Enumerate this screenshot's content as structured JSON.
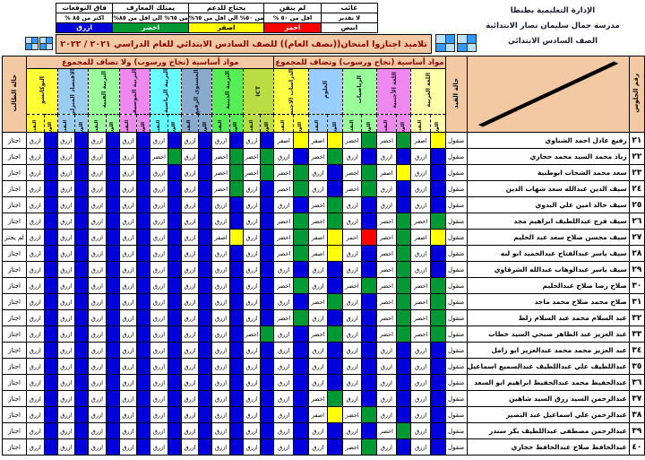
{
  "admin": {
    "line1": "الإدارة التعليمية بطنطا",
    "line2": "مدرسة جمال سليمان نصار الابتدائية",
    "line3": "الصف السادس الابتدائي"
  },
  "title": "تلاميذ اجتازوا امتحان((نصف العام)) للصف السادس الابتدائي للعام الدراسي ٢٠٢١ / ٢٠٢٢",
  "legend": {
    "columns": [
      {
        "label": "فاق التوقعات",
        "range": "اكثر من ٨٥ %",
        "color_name": "ازرق",
        "color": "#0000dd",
        "text_color": "#ffffff"
      },
      {
        "label": "يمتلك المعارف",
        "range": "من ٦٥% الى اقل من ٨٥%",
        "color_name": "اخضر",
        "color": "#009933",
        "text_color": "#ffffff"
      },
      {
        "label": "يحتاج للدعم",
        "range": "من ٥٠% الى اقل من ٦٥%",
        "color_name": "اصفر",
        "color": "#ffff00",
        "text_color": "#000000"
      },
      {
        "label": "لم يتقن",
        "range": "اقل من ٥٠ %",
        "color_name": "احمر",
        "color": "#ff0000",
        "text_color": "#ffffff"
      },
      {
        "label": "غائب",
        "range": "لا تقدير",
        "color_name": "ابيض",
        "color": "#ffffff",
        "text_color": "#000000"
      }
    ]
  },
  "icons": {
    "mini_table_icon": "mini-table-icon",
    "cells": [
      "#3399ff",
      "#bde0ff",
      "#bde0ff",
      "#3399ff"
    ]
  },
  "table": {
    "corner_headers": {
      "seat": "رقم الجلوس",
      "enroll": "حالة القيد",
      "student_status": "حالة الطالب"
    },
    "groups": [
      {
        "label": "مواد أساسية (نجاح ورسوب) وتضاف للمجموع",
        "subjects": 5
      },
      {
        "label": "مواد أساسية (نجاح ورسوب) ولا تضاف للمجموع",
        "subjects": 8
      }
    ],
    "sub_headers": {
      "color": "اللون",
      "grade": "التقدير"
    },
    "subjects": [
      {
        "name": "اللغة العربية",
        "color": "#ffffaa"
      },
      {
        "name": "اللغة الأجنبية",
        "color": "#ee88ee"
      },
      {
        "name": "الرياضيات",
        "color": "#99ff99"
      },
      {
        "name": "العلوم",
        "color": "#99ccff"
      },
      {
        "name": "الدراسات الاجتماعية",
        "color": "#ffff44"
      },
      {
        "name": "ICT",
        "color": "#bbdd44"
      },
      {
        "name": "التربية الدينية",
        "color": "#55ee55"
      },
      {
        "name": "المستوى الرفيع",
        "color": "#88aacc"
      },
      {
        "name": "التربية الرياضية",
        "color": "#66ffff"
      },
      {
        "name": "التربية الموسيقية",
        "color": "#ee88ee"
      },
      {
        "name": "التربية الفنية",
        "color": "#99ff99"
      },
      {
        "name": "الاقتصاد المنزلي",
        "color": "#99ccee"
      },
      {
        "name": "التوكاتسو",
        "color": "#ffff33"
      }
    ],
    "grade_colors": {
      "ازرق": "#0000dd",
      "اخضر": "#009933",
      "اصفر": "#ffff00",
      "احمر": "#ff0000"
    },
    "rows": [
      {
        "seat": "٢١",
        "name": "رفيع عادل احمد الشناوي",
        "enroll": "منقول",
        "status": "اجتاز",
        "grades": [
          "اصفر",
          "اخضر",
          "اخضر",
          "اصفر",
          "اصفر",
          "ازرق",
          "ازرق",
          "ازرق",
          "ازرق",
          "ازرق",
          "ازرق",
          "ازرق",
          "ازرق"
        ]
      },
      {
        "seat": "٢٢",
        "name": "زياد محمد السيد محمد حجازي",
        "enroll": "منقول",
        "status": "اجتاز",
        "grades": [
          "ازرق",
          "ازرق",
          "ازرق",
          "اخضر",
          "ازرق",
          "اخضر",
          "اخضر",
          "ازرق",
          "اخضر",
          "ازرق",
          "ازرق",
          "ازرق",
          "ازرق"
        ]
      },
      {
        "seat": "٢٣",
        "name": "سعد محمد الشحات ابوطبية",
        "enroll": "منقول",
        "status": "اجتاز",
        "grades": [
          "ازرق",
          "اصفر",
          "اخضر",
          "ازرق",
          "اخضر",
          "اخضر",
          "اخضر",
          "ازرق",
          "ازرق",
          "ازرق",
          "ازرق",
          "ازرق",
          "ازرق"
        ]
      },
      {
        "seat": "٢٤",
        "name": "سيف الدين عبدالله سعد شهاب الدين",
        "enroll": "منقول",
        "status": "اجتاز",
        "grades": [
          "ازرق",
          "ازرق",
          "اخضر",
          "ازرق",
          "اخضر",
          "ازرق",
          "اخضر",
          "ازرق",
          "ازرق",
          "ازرق",
          "ازرق",
          "ازرق",
          "ازرق"
        ]
      },
      {
        "seat": "٢٥",
        "name": "سيف خالد امين علي البدوي",
        "enroll": "منقول",
        "status": "اجتاز",
        "grades": [
          "ازرق",
          "ازرق",
          "ازرق",
          "اخضر",
          "ازرق",
          "ازرق",
          "ازرق",
          "ازرق",
          "ازرق",
          "ازرق",
          "ازرق",
          "ازرق",
          "ازرق"
        ]
      },
      {
        "seat": "٢٦",
        "name": "سيف فرج عبداللطيف ابراهيم مجد",
        "enroll": "منقول",
        "status": "اجتاز",
        "grades": [
          "اخضر",
          "اخضر",
          "ازرق",
          "اخضر",
          "اخضر",
          "ازرق",
          "ازرق",
          "ازرق",
          "ازرق",
          "ازرق",
          "ازرق",
          "ازرق",
          "ازرق"
        ]
      },
      {
        "seat": "٢٧",
        "name": "سيف محسن صلاح سعد عبد الحليم",
        "enroll": "منقول",
        "status": "لم يجتز",
        "grades": [
          "اصفر",
          "اخضر",
          "احمر",
          "اصفر",
          "اخضر",
          "ازرق",
          "اصفر",
          "ازرق",
          "ازرق",
          "ازرق",
          "ازرق",
          "ازرق",
          "ازرق"
        ]
      },
      {
        "seat": "٢٨",
        "name": "سيف ياسر عبدالفتاح عبدالحميد ابو لبه",
        "enroll": "منقول",
        "status": "اجتاز",
        "grades": [
          "ازرق",
          "اخضر",
          "ازرق",
          "اصفر",
          "اخضر",
          "ازرق",
          "ازرق",
          "ازرق",
          "ازرق",
          "ازرق",
          "ازرق",
          "ازرق",
          "ازرق"
        ]
      },
      {
        "seat": "٢٩",
        "name": "سيف ياسر عبدالوهاب عبدالله الشرقاوي",
        "enroll": "منقول",
        "status": "اجتاز",
        "grades": [
          "ازرق",
          "اخضر",
          "ازرق",
          "ازرق",
          "ازرق",
          "ازرق",
          "ازرق",
          "ازرق",
          "ازرق",
          "ازرق",
          "ازرق",
          "ازرق",
          "ازرق"
        ]
      },
      {
        "seat": "٣٠",
        "name": "صلاح رضا صلاح عبدالحليم",
        "enroll": "منقول",
        "status": "اجتاز",
        "grades": [
          "اخضر",
          "اخضر",
          "اخضر",
          "ازرق",
          "اخضر",
          "ازرق",
          "ازرق",
          "ازرق",
          "ازرق",
          "ازرق",
          "ازرق",
          "ازرق",
          "ازرق"
        ]
      },
      {
        "seat": "٣١",
        "name": "صلاح محمد صلاح محمد ماجد",
        "enroll": "منقول",
        "status": "اجتاز",
        "grades": [
          "اخضر",
          "اخضر",
          "ازرق",
          "اخضر",
          "ازرق",
          "ازرق",
          "ازرق",
          "ازرق",
          "ازرق",
          "ازرق",
          "ازرق",
          "ازرق",
          "ازرق"
        ]
      },
      {
        "seat": "٣٢",
        "name": "عبد السلام محمد عبد السلام زلط",
        "enroll": "منقول",
        "status": "اجتاز",
        "grades": [
          "اخضر",
          "اخضر",
          "ازرق",
          "ازرق",
          "اخضر",
          "ازرق",
          "ازرق",
          "ازرق",
          "ازرق",
          "ازرق",
          "ازرق",
          "ازرق",
          "ازرق"
        ]
      },
      {
        "seat": "٣٣",
        "name": "عبد العزيز عبد الظاهر صبحي السيد خطاب",
        "enroll": "منقول",
        "status": "اجتاز",
        "grades": [
          "اخضر",
          "اخضر",
          "ازرق",
          "اخضر",
          "ازرق",
          "اخضر",
          "ازرق",
          "ازرق",
          "ازرق",
          "ازرق",
          "ازرق",
          "ازرق",
          "ازرق"
        ]
      },
      {
        "seat": "٣٤",
        "name": "عبد العزيز محمد محمد عبدالعزيز ابو زامل",
        "enroll": "منقول",
        "status": "اجتاز",
        "grades": [
          "ازرق",
          "ازرق",
          "ازرق",
          "ازرق",
          "ازرق",
          "ازرق",
          "ازرق",
          "ازرق",
          "ازرق",
          "ازرق",
          "ازرق",
          "ازرق",
          "ازرق"
        ]
      },
      {
        "seat": "٣٥",
        "name": "عبداللطيف علي عبداللطيف عبدالسميع اسماعيل",
        "enroll": "منقول",
        "status": "اجتاز",
        "grades": [
          "ازرق",
          "ازرق",
          "ازرق",
          "ازرق",
          "ازرق",
          "ازرق",
          "ازرق",
          "ازرق",
          "ازرق",
          "ازرق",
          "ازرق",
          "ازرق",
          "ازرق"
        ]
      },
      {
        "seat": "٣٦",
        "name": "عبدالحفيظ محمد عبدالحفيظ ابراهيم ابو السعد",
        "enroll": "منقول",
        "status": "اجتاز",
        "grades": [
          "ازرق",
          "ازرق",
          "ازرق",
          "ازرق",
          "ازرق",
          "ازرق",
          "ازرق",
          "ازرق",
          "ازرق",
          "ازرق",
          "ازرق",
          "ازرق",
          "ازرق"
        ]
      },
      {
        "seat": "٣٧",
        "name": "عبدالرحمن السيد رزق السيد شاهين",
        "enroll": "منقول",
        "status": "اجتاز",
        "grades": [
          "ازرق",
          "ازرق",
          "ازرق",
          "اخضر",
          "ازرق",
          "ازرق",
          "ازرق",
          "ازرق",
          "ازرق",
          "ازرق",
          "ازرق",
          "ازرق",
          "ازرق"
        ]
      },
      {
        "seat": "٣٨",
        "name": "عبدالرحمن علي اسماعيل عبد النصير",
        "enroll": "منقول",
        "status": "اجتاز",
        "grades": [
          "ازرق",
          "ازرق",
          "اخضر",
          "اصفر",
          "ازرق",
          "ازرق",
          "ازرق",
          "ازرق",
          "ازرق",
          "ازرق",
          "ازرق",
          "ازرق",
          "ازرق"
        ]
      },
      {
        "seat": "٣٩",
        "name": "عبدالرحمن مصطفى عبداللطيف بكر سندر",
        "enroll": "منقول",
        "status": "اجتاز",
        "grades": [
          "ازرق",
          "اخضر",
          "ازرق",
          "ازرق",
          "ازرق",
          "ازرق",
          "ازرق",
          "ازرق",
          "ازرق",
          "ازرق",
          "ازرق",
          "ازرق",
          "ازرق"
        ]
      },
      {
        "seat": "٤٠",
        "name": "عبدالحافظ صلاح عبدالحافظ حجازي",
        "enroll": "منقول",
        "status": "اجتاز",
        "grades": [
          "ازرق",
          "ازرق",
          "اخضر",
          "ازرق",
          "ازرق",
          "ازرق",
          "ازرق",
          "ازرق",
          "ازرق",
          "ازرق",
          "ازرق",
          "ازرق",
          "ازرق"
        ]
      }
    ]
  }
}
